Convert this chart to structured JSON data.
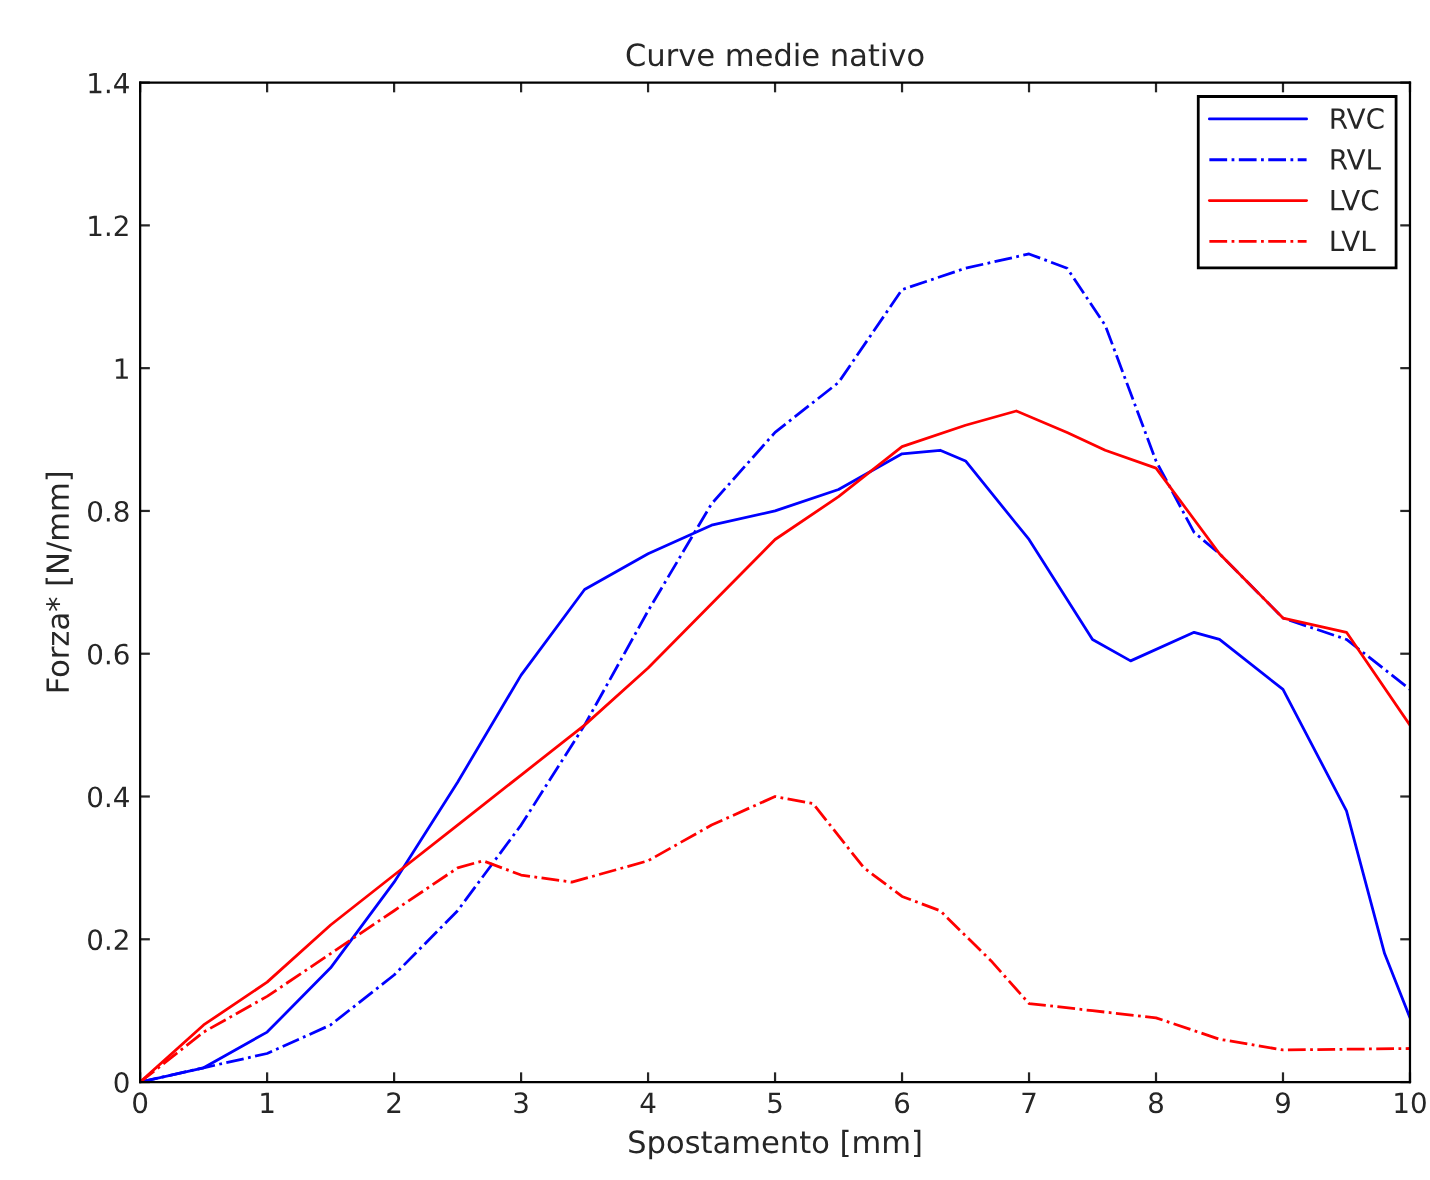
{
  "chart_data": {
    "type": "line",
    "title": "Curve medie nativo",
    "xlabel": "Spostamento [mm]",
    "ylabel": "Forza* [N/mm]",
    "xlim": [
      0,
      10
    ],
    "ylim": [
      0,
      1.4
    ],
    "xticks": [
      0,
      1,
      2,
      3,
      4,
      5,
      6,
      7,
      8,
      9,
      10
    ],
    "yticks": [
      0,
      0.2,
      0.4,
      0.6,
      0.8,
      1,
      1.2,
      1.4
    ],
    "grid": false,
    "legend": "top right",
    "series": [
      {
        "name": "RVC",
        "color": "#0000ff",
        "line_style": "solid",
        "x": [
          0,
          0.5,
          1,
          1.5,
          2,
          2.5,
          3,
          3.5,
          4,
          4.5,
          5,
          5.5,
          6,
          6.3,
          6.5,
          7,
          7.5,
          7.8,
          8.3,
          8.5,
          9,
          9.5,
          9.8,
          10
        ],
        "values": [
          0,
          0.02,
          0.07,
          0.16,
          0.28,
          0.42,
          0.57,
          0.69,
          0.74,
          0.78,
          0.8,
          0.83,
          0.88,
          0.885,
          0.87,
          0.76,
          0.62,
          0.59,
          0.63,
          0.62,
          0.55,
          0.38,
          0.18,
          0.09
        ]
      },
      {
        "name": "RVL",
        "color": "#0000ff",
        "line_style": "dashdot",
        "x": [
          0,
          0.5,
          1,
          1.5,
          2,
          2.5,
          3,
          3.5,
          4,
          4.5,
          5,
          5.5,
          6,
          6.5,
          7,
          7.3,
          7.6,
          8,
          8.3,
          8.5,
          9,
          9.5,
          10
        ],
        "values": [
          0,
          0.02,
          0.04,
          0.08,
          0.15,
          0.24,
          0.36,
          0.5,
          0.66,
          0.81,
          0.91,
          0.98,
          1.11,
          1.14,
          1.16,
          1.14,
          1.06,
          0.87,
          0.77,
          0.74,
          0.65,
          0.62,
          0.55
        ]
      },
      {
        "name": "LVC",
        "color": "#ff0000",
        "line_style": "solid",
        "x": [
          0,
          0.5,
          1,
          1.5,
          2,
          2.5,
          3,
          3.5,
          4,
          4.5,
          5,
          5.5,
          6,
          6.5,
          6.9,
          7.3,
          7.6,
          8,
          8.5,
          9,
          9.5,
          10
        ],
        "values": [
          0,
          0.08,
          0.14,
          0.22,
          0.29,
          0.36,
          0.43,
          0.5,
          0.58,
          0.67,
          0.76,
          0.82,
          0.89,
          0.92,
          0.94,
          0.91,
          0.885,
          0.86,
          0.74,
          0.65,
          0.63,
          0.5
        ]
      },
      {
        "name": "LVL",
        "color": "#ff0000",
        "line_style": "dashdot",
        "x": [
          0,
          0.5,
          1,
          1.5,
          2,
          2.5,
          2.7,
          3,
          3.4,
          4,
          4.5,
          5,
          5.3,
          5.7,
          6,
          6.3,
          6.7,
          7,
          7.5,
          8,
          8.5,
          9,
          10
        ],
        "values": [
          0,
          0.07,
          0.12,
          0.18,
          0.24,
          0.3,
          0.31,
          0.29,
          0.28,
          0.31,
          0.36,
          0.4,
          0.39,
          0.3,
          0.26,
          0.24,
          0.17,
          0.11,
          0.1,
          0.09,
          0.06,
          0.045,
          0.047
        ]
      }
    ]
  }
}
